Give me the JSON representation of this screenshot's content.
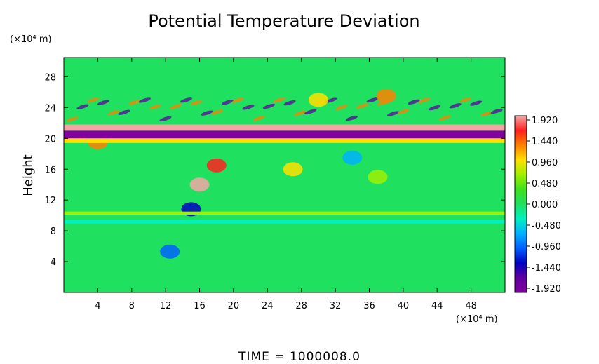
{
  "chart_data": {
    "type": "heatmap",
    "title": "Potential Temperature Deviation",
    "ylabel": "Height",
    "y_unit": "(×10⁴ m)",
    "x_unit": "(×10⁴ m)",
    "x_ticks": [
      4,
      8,
      12,
      16,
      20,
      24,
      28,
      32,
      36,
      40,
      44,
      48
    ],
    "y_ticks": [
      4,
      8,
      12,
      16,
      20,
      24,
      28
    ],
    "xlim": [
      0,
      52
    ],
    "ylim": [
      0,
      30.5
    ],
    "colorbar": {
      "labels": [
        "1.920",
        "1.440",
        "0.960",
        "0.480",
        "0.000",
        "-0.480",
        "-0.960",
        "-1.440",
        "-1.920"
      ],
      "values": [
        1.92,
        1.44,
        0.96,
        0.48,
        0.0,
        -0.48,
        -0.96,
        -1.44,
        -1.92
      ],
      "colors_top_to_bottom": [
        "#f4a6a6",
        "#ff2020",
        "#ff8000",
        "#ffe000",
        "#a0f000",
        "#40e020",
        "#20e060",
        "#00f0c0",
        "#00b0ff",
        "#0060ff",
        "#0000c0",
        "#6000a0",
        "#8000a0"
      ]
    },
    "field": {
      "background_value": 0.15,
      "bands": [
        {
          "y": 20.5,
          "half_width": 0.5,
          "value": -1.95
        },
        {
          "y": 21.4,
          "half_width": 0.4,
          "value": 1.95
        },
        {
          "y": 19.7,
          "half_width": 0.3,
          "value": 1.0
        },
        {
          "y": 10.3,
          "half_width": 0.2,
          "value": 0.55
        },
        {
          "y": 9.2,
          "half_width": 0.25,
          "value": -0.25
        }
      ],
      "blobs": [
        {
          "x": 16,
          "y": 14,
          "value": 1.8
        },
        {
          "x": 18,
          "y": 16.5,
          "value": 1.7
        },
        {
          "x": 15,
          "y": 10.8,
          "value": -1.4
        },
        {
          "x": 12.5,
          "y": 5.3,
          "value": -1.0
        },
        {
          "x": 27,
          "y": 16,
          "value": 0.9
        },
        {
          "x": 34,
          "y": 17.5,
          "value": -0.7
        },
        {
          "x": 37,
          "y": 15,
          "value": 0.6
        },
        {
          "x": 4,
          "y": 19.5,
          "value": 1.4
        },
        {
          "x": 30,
          "y": 25,
          "value": 0.8
        },
        {
          "x": 38,
          "y": 25.5,
          "value": 1.2
        }
      ]
    },
    "grid": false
  },
  "footer": {
    "time_label": "TIME = 1000008.0"
  },
  "colors": {
    "frame": "#000000",
    "background": "#ffffff"
  }
}
